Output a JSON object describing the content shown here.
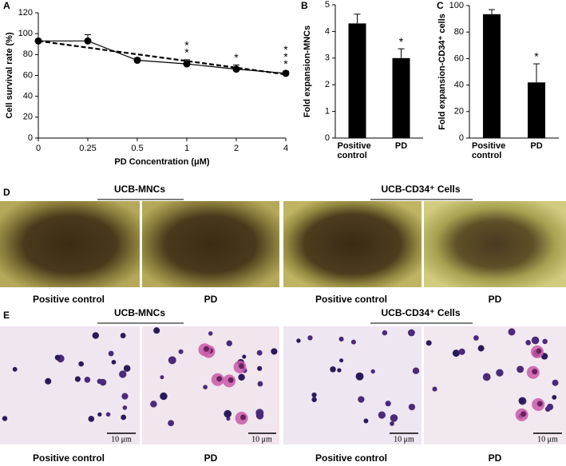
{
  "chart_data": [
    {
      "type": "line",
      "panel": "A",
      "categories": [
        "0",
        "0.25",
        "0.5",
        "1",
        "2",
        "4"
      ],
      "xlabel": "PD Concentration (μM)",
      "ylabel": "Cell survival rate (%)",
      "ylim": [
        0,
        120
      ],
      "yticks": [
        0,
        20,
        40,
        60,
        80,
        100,
        120
      ],
      "series": [
        {
          "color": "#000000",
          "values": [
            93,
            93,
            74.5,
            71,
            66,
            62
          ],
          "errors": [
            0,
            6,
            2,
            4,
            4,
            2
          ]
        },
        {
          "color": "#000000",
          "dashed": true,
          "values": [
            93,
            86.6,
            80.2,
            73.8,
            67.4,
            61
          ]
        }
      ],
      "annotations": [
        {
          "category": 3,
          "lines": [
            "*",
            "*"
          ]
        },
        {
          "category": 4,
          "lines": [
            "*"
          ]
        },
        {
          "category": 5,
          "lines": [
            "*",
            "*",
            "*"
          ]
        }
      ]
    },
    {
      "type": "bar",
      "panel": "B",
      "categories": [
        "Positive control",
        "PD"
      ],
      "ylabel": "Fold expansion-MNCs",
      "ylim": [
        0,
        5
      ],
      "yticks": [
        0,
        1,
        2,
        3,
        4,
        5
      ],
      "color": "#000000",
      "values": [
        4.3,
        3.0
      ],
      "errors": [
        0.35,
        0.35
      ],
      "annotations": [
        {
          "category": 1,
          "lines": [
            "*"
          ]
        }
      ]
    },
    {
      "type": "bar",
      "panel": "C",
      "categories": [
        "Positive control",
        "PD"
      ],
      "ylabel": "Fold expansion-CD34⁺ cells",
      "ylim": [
        0,
        100
      ],
      "yticks": [
        0,
        20,
        40,
        60,
        80,
        100
      ],
      "color": "#000000",
      "values": [
        93.5,
        42
      ],
      "errors": [
        3.5,
        14
      ],
      "annotations": [
        {
          "category": 1,
          "lines": [
            "*"
          ]
        }
      ]
    }
  ],
  "panels": {
    "D": {
      "letter": "D",
      "groups": [
        "UCB-MNCs",
        "UCB-CD34⁺ Cells"
      ],
      "captions": [
        "Positive control",
        "PD",
        "Positive control",
        "PD"
      ]
    },
    "E": {
      "letter": "E",
      "groups": [
        "UCB-MNCs",
        "UCB-CD34⁺ Cells"
      ],
      "captions": [
        "Positive control",
        "PD",
        "Positive control",
        "PD"
      ],
      "scale_bars": [
        "10 μm",
        "10 μm",
        "10 μm",
        "10 μm"
      ]
    }
  }
}
